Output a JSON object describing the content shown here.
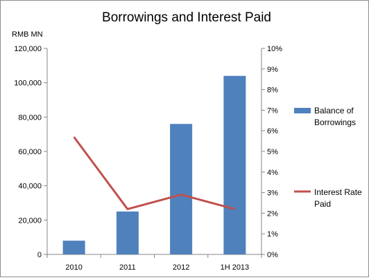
{
  "chart_data": {
    "type": "bar",
    "title": "Borrowings and Interest Paid",
    "ylabel": "RMB MN",
    "categories": [
      "2010",
      "2011",
      "2012",
      "1H 2013"
    ],
    "series": [
      {
        "name": "Balance of Borrowings",
        "type": "bar",
        "axis": "left",
        "values": [
          8000,
          25000,
          76000,
          104000
        ],
        "color": "#4f81bd"
      },
      {
        "name": "Interest Rate Paid",
        "type": "line",
        "axis": "right",
        "values": [
          5.7,
          2.2,
          2.9,
          2.2
        ],
        "color": "#c0504d"
      }
    ],
    "y_left": {
      "ylim": [
        0,
        120000
      ],
      "ticks": [
        "0",
        "20,000",
        "40,000",
        "60,000",
        "80,000",
        "100,000",
        "120,000"
      ]
    },
    "y_right": {
      "ylim": [
        0,
        10
      ],
      "ticks": [
        "0%",
        "1%",
        "2%",
        "3%",
        "4%",
        "5%",
        "6%",
        "7%",
        "8%",
        "9%",
        "10%"
      ]
    },
    "legend": {
      "placement": "right",
      "items": [
        {
          "lines": [
            "Balance of",
            "Borrowings"
          ]
        },
        {
          "lines": [
            "Interest Rate",
            "Paid"
          ]
        }
      ]
    },
    "grid": false
  }
}
